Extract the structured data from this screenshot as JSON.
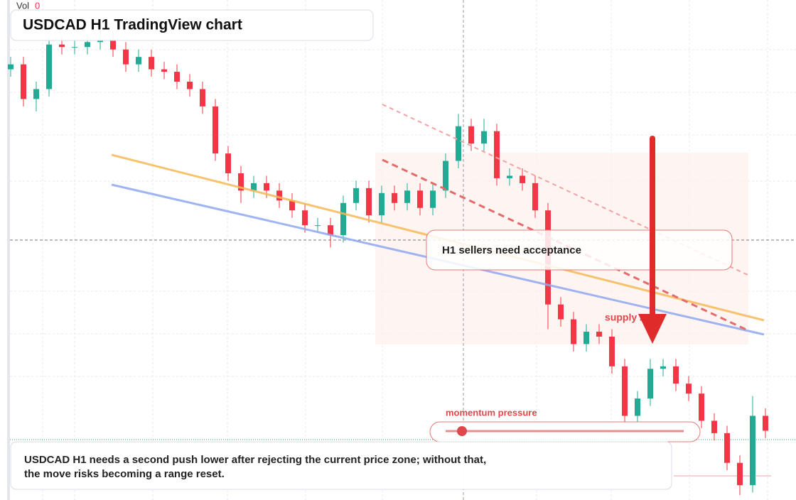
{
  "vol_label": "Vol",
  "vol_value": 0,
  "title": "USDCAD H1 TradingView chart",
  "callout": "H1 sellers need acceptance",
  "zone_label": "supply zone",
  "momentum_label": "momentum pressure",
  "note_lines": [
    "USDCAD H1 needs a second push lower after rejecting the current price zone; without that,",
    "the move risks becoming a range reset."
  ],
  "chart_data": {
    "type": "candlestick",
    "up_color": "#22ab94",
    "down_color": "#f23645",
    "ylim": [
      1.3598,
      1.38
    ],
    "open": [
      1.3772,
      1.3774,
      1.376,
      1.3764,
      1.3782,
      1.3781,
      1.3781,
      1.3783,
      1.3784,
      1.378,
      1.3774,
      1.3777,
      1.3772,
      1.3771,
      1.3767,
      1.3764,
      1.3757,
      1.3738,
      1.373,
      1.3723,
      1.3726,
      1.3723,
      1.3719,
      1.3715,
      1.3709,
      1.3709,
      1.3705,
      1.3718,
      1.3724,
      1.3713,
      1.3722,
      1.3718,
      1.3723,
      1.3716,
      1.3723,
      1.3735,
      1.3749,
      1.3742,
      1.3747,
      1.3728,
      1.3729,
      1.3726,
      1.3715,
      1.3677,
      1.3671,
      1.3661,
      1.3666,
      1.3664,
      1.3652,
      1.3632,
      1.3639,
      1.3651,
      1.3652,
      1.3645,
      1.3641,
      1.363,
      1.3625,
      1.3613,
      1.3604,
      1.3632
    ],
    "high": [
      1.3777,
      1.3777,
      1.3767,
      1.3785,
      1.3785,
      1.3784,
      1.3786,
      1.379,
      1.3787,
      1.3783,
      1.378,
      1.378,
      1.3775,
      1.3774,
      1.377,
      1.3767,
      1.376,
      1.3741,
      1.3733,
      1.3729,
      1.3729,
      1.3726,
      1.3722,
      1.3718,
      1.3712,
      1.3712,
      1.3721,
      1.3727,
      1.3727,
      1.3725,
      1.3725,
      1.3726,
      1.3726,
      1.3726,
      1.3738,
      1.3754,
      1.3752,
      1.3752,
      1.375,
      1.3732,
      1.3732,
      1.3729,
      1.3718,
      1.368,
      1.3674,
      1.3669,
      1.3669,
      1.3667,
      1.3655,
      1.3642,
      1.3655,
      1.3655,
      1.3655,
      1.3648,
      1.3644,
      1.3633,
      1.3628,
      1.3616,
      1.364,
      1.3635
    ],
    "low": [
      1.3769,
      1.3757,
      1.3755,
      1.3761,
      1.3778,
      1.3778,
      1.3778,
      1.378,
      1.3777,
      1.3771,
      1.3771,
      1.3769,
      1.3768,
      1.3764,
      1.3761,
      1.3754,
      1.3735,
      1.3727,
      1.3718,
      1.372,
      1.372,
      1.3716,
      1.3712,
      1.3706,
      1.3706,
      1.37,
      1.3702,
      1.3715,
      1.371,
      1.371,
      1.3715,
      1.3715,
      1.3713,
      1.3713,
      1.372,
      1.3732,
      1.3739,
      1.3739,
      1.3725,
      1.3725,
      1.3723,
      1.3712,
      1.3667,
      1.3668,
      1.3658,
      1.3658,
      1.3661,
      1.3649,
      1.3629,
      1.3629,
      1.3636,
      1.3648,
      1.3642,
      1.3638,
      1.3627,
      1.3622,
      1.361,
      1.36,
      1.3601,
      1.3623
    ],
    "close": [
      1.3774,
      1.376,
      1.3764,
      1.3782,
      1.3781,
      1.3781,
      1.3783,
      1.3784,
      1.378,
      1.3774,
      1.3777,
      1.3772,
      1.3771,
      1.3767,
      1.3764,
      1.3757,
      1.3738,
      1.373,
      1.3723,
      1.3726,
      1.3723,
      1.3719,
      1.3715,
      1.3709,
      1.3709,
      1.3705,
      1.3718,
      1.3724,
      1.3713,
      1.3722,
      1.3718,
      1.3723,
      1.3716,
      1.3723,
      1.3735,
      1.3749,
      1.3742,
      1.3747,
      1.3728,
      1.3729,
      1.3726,
      1.3715,
      1.3677,
      1.3671,
      1.3661,
      1.3666,
      1.3664,
      1.3652,
      1.3632,
      1.3639,
      1.3651,
      1.3652,
      1.3645,
      1.3641,
      1.363,
      1.3625,
      1.3613,
      1.3604,
      1.3632,
      1.3626
    ]
  }
}
